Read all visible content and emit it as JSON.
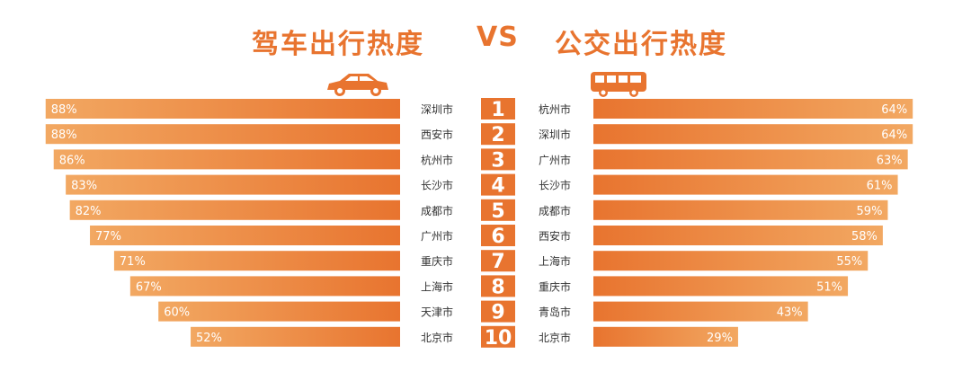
{
  "header": {
    "left_title": "驾车出行热度",
    "vs": "VS",
    "right_title": "公交出行热度"
  },
  "icons": {
    "left": "car-icon",
    "right": "bus-icon"
  },
  "colors": {
    "accent": "#e8742f",
    "bar_light": "#f0a25f",
    "bar_dark": "#e8742f"
  },
  "chart_data": [
    {
      "type": "bar",
      "title": "驾车出行热度",
      "orientation": "horizontal",
      "direction": "right-to-left",
      "ranks": [
        "1",
        "2",
        "3",
        "4",
        "5",
        "6",
        "7",
        "8",
        "9",
        "10"
      ],
      "categories": [
        "深圳市",
        "西安市",
        "杭州市",
        "长沙市",
        "成都市",
        "广州市",
        "重庆市",
        "上海市",
        "天津市",
        "北京市"
      ],
      "values": [
        88,
        88,
        86,
        83,
        82,
        77,
        71,
        67,
        60,
        52
      ],
      "labels": [
        "88%",
        "88%",
        "86%",
        "83%",
        "82%",
        "77%",
        "71%",
        "67%",
        "60%",
        "52%"
      ],
      "unit": "%",
      "xlim": [
        0,
        100
      ],
      "grid": false
    },
    {
      "type": "bar",
      "title": "公交出行热度",
      "orientation": "horizontal",
      "direction": "left-to-right",
      "ranks": [
        "1",
        "2",
        "3",
        "4",
        "5",
        "6",
        "7",
        "8",
        "9",
        "10"
      ],
      "categories": [
        "杭州市",
        "深圳市",
        "广州市",
        "长沙市",
        "成都市",
        "西安市",
        "上海市",
        "重庆市",
        "青岛市",
        "北京市"
      ],
      "values": [
        64,
        64,
        63,
        61,
        59,
        58,
        55,
        51,
        43,
        29
      ],
      "labels": [
        "64%",
        "64%",
        "63%",
        "61%",
        "59%",
        "58%",
        "55%",
        "51%",
        "43%",
        "29%"
      ],
      "unit": "%",
      "xlim": [
        0,
        100
      ],
      "grid": false
    }
  ]
}
